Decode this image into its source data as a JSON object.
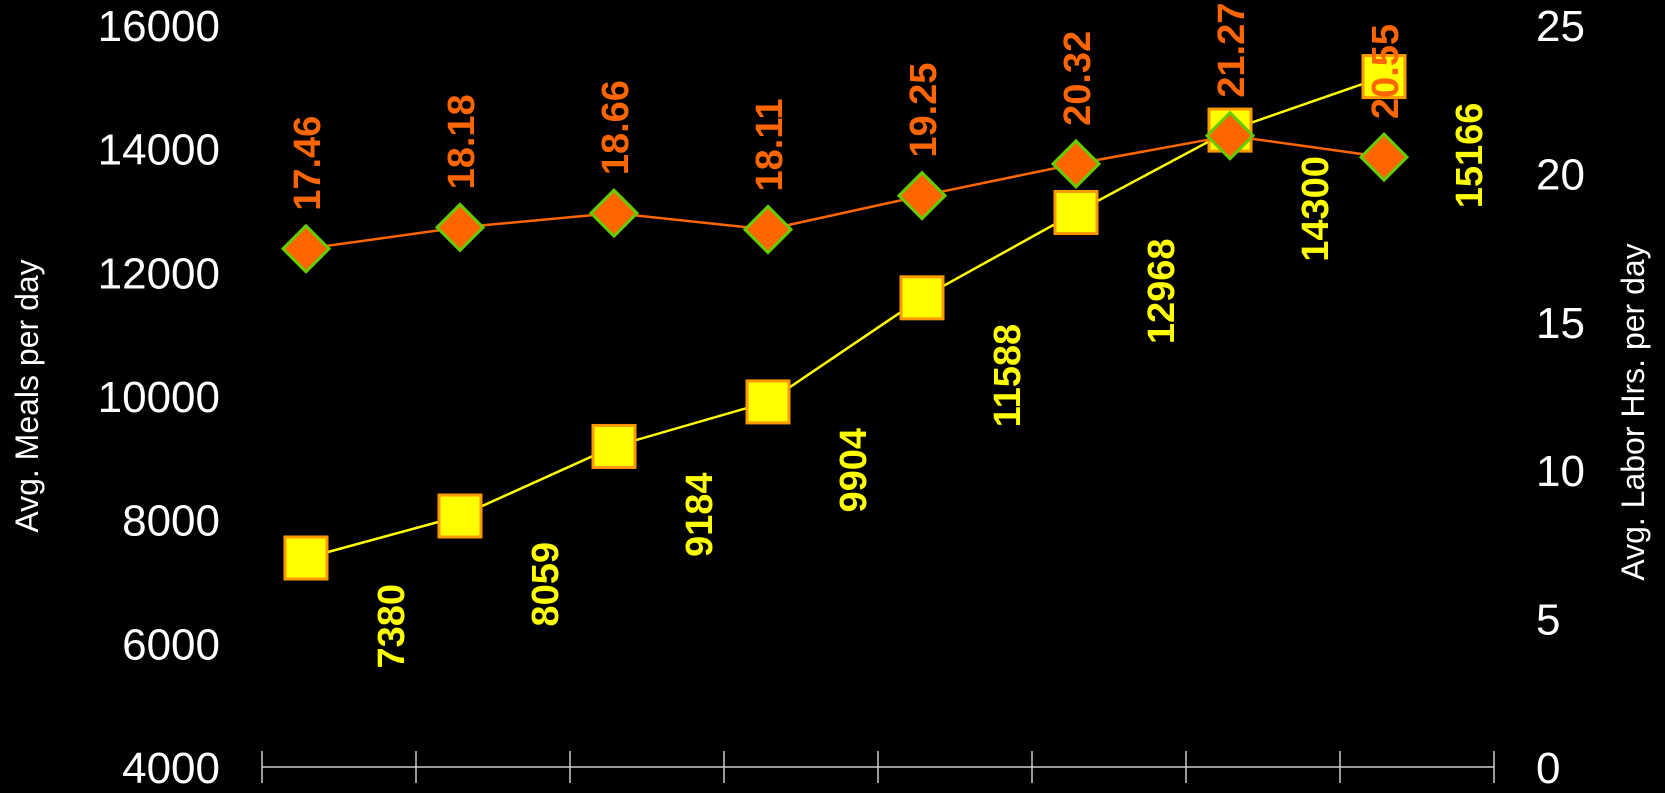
{
  "chart_data": {
    "type": "line",
    "title": "",
    "grid": false,
    "legend": "none",
    "y_left": {
      "label": "Avg. Meals per day",
      "lim": [
        4000,
        16000
      ],
      "ticks": [
        "4000",
        "6000",
        "8000",
        "10000",
        "12000",
        "14000",
        "16000"
      ]
    },
    "y_right": {
      "label": "Avg. Labor Hrs. per day",
      "lim": [
        0,
        25
      ],
      "ticks": [
        "0",
        "5",
        "10",
        "15",
        "20",
        "25"
      ]
    },
    "x_categories_count": 8,
    "series": [
      {
        "axis": "left",
        "marker": "square",
        "color": "#ffff00",
        "marker_edge": "#ff9900",
        "values": [
          7380,
          8059,
          9184,
          9904,
          11588,
          12968,
          14300,
          15166
        ],
        "labels": [
          "7380",
          "8059",
          "9184",
          "9904",
          "11588",
          "12968",
          "14300",
          "15166"
        ]
      },
      {
        "axis": "right",
        "marker": "diamond",
        "color": "#ff6600",
        "marker_edge": "#66cc00",
        "values": [
          17.46,
          18.18,
          18.66,
          18.11,
          19.25,
          20.32,
          21.27,
          20.55
        ],
        "labels": [
          "17.46",
          "18.18",
          "18.66",
          "18.11",
          "19.25",
          "20.32",
          "21.27",
          "20.55"
        ]
      }
    ]
  }
}
